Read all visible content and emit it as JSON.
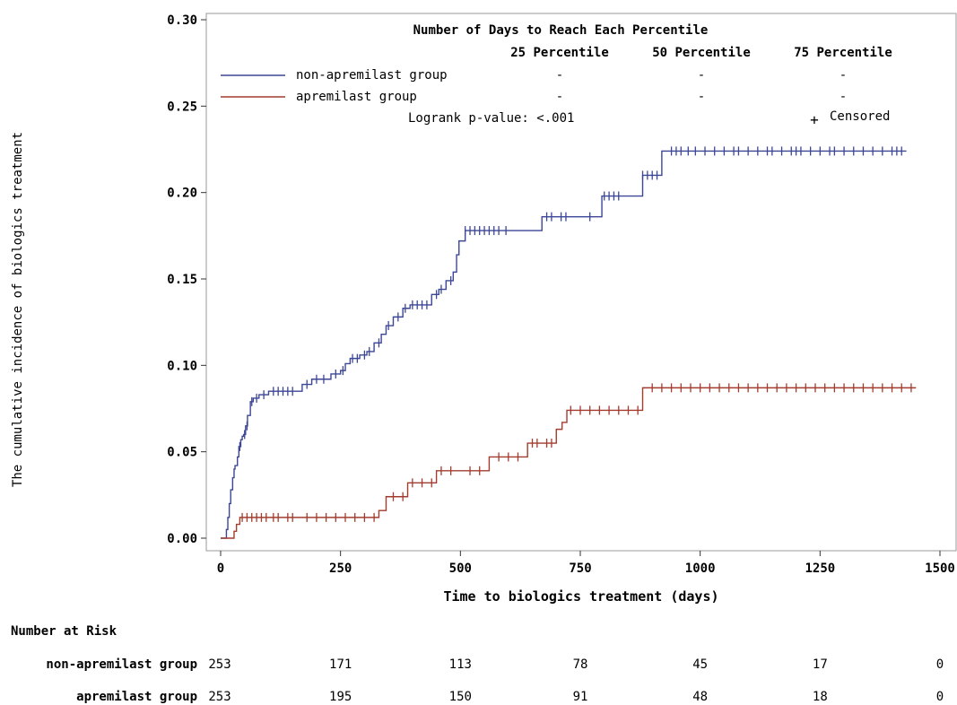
{
  "chart_data": {
    "type": "line",
    "subtype": "kaplan-meier cumulative incidence",
    "xlabel": "Time to biologics treatment (days)",
    "ylabel": "The cumulative incidence of biologics treatment",
    "xlim": [
      0,
      1500
    ],
    "ylim": [
      0,
      0.3
    ],
    "xticks": [
      "0",
      "250",
      "500",
      "750",
      "1000",
      "1250",
      "1500"
    ],
    "yticks": [
      "0.00",
      "0.05",
      "0.10",
      "0.15",
      "0.20",
      "0.25",
      "0.30"
    ],
    "grid": false,
    "legend_placement": "top-left",
    "inset_table": {
      "title": "Number of Days to Reach Each Percentile",
      "columns": [
        "25 Percentile",
        "50 Percentile",
        "75 Percentile"
      ],
      "rows": [
        {
          "group": "non-apremilast group",
          "values": [
            "-",
            "-",
            "-"
          ]
        },
        {
          "group": "apremilast group",
          "values": [
            "-",
            "-",
            "-"
          ]
        }
      ],
      "pvalue": "Logrank p-value: <.001",
      "censored_label": "Censored",
      "censored_symbol": "+"
    },
    "series": [
      {
        "name": "non-apremilast group",
        "color": "#3c4696",
        "x": [
          0,
          12,
          15,
          18,
          21,
          25,
          28,
          30,
          35,
          38,
          42,
          45,
          48,
          52,
          56,
          62,
          68,
          80,
          100,
          170,
          190,
          230,
          250,
          260,
          270,
          290,
          305,
          320,
          335,
          345,
          360,
          380,
          395,
          440,
          455,
          470,
          485,
          492,
          497,
          510,
          600,
          670,
          740,
          795,
          830,
          880,
          920,
          1430
        ],
        "y": [
          0,
          0.005,
          0.012,
          0.02,
          0.028,
          0.035,
          0.04,
          0.042,
          0.047,
          0.053,
          0.057,
          0.059,
          0.06,
          0.065,
          0.071,
          0.079,
          0.081,
          0.083,
          0.085,
          0.089,
          0.092,
          0.095,
          0.097,
          0.101,
          0.104,
          0.106,
          0.108,
          0.113,
          0.118,
          0.123,
          0.128,
          0.133,
          0.135,
          0.141,
          0.144,
          0.149,
          0.154,
          0.164,
          0.172,
          0.178,
          0.178,
          0.186,
          0.186,
          0.198,
          0.198,
          0.21,
          0.224,
          0.224
        ],
        "censored_x": [
          40,
          50,
          55,
          65,
          75,
          90,
          110,
          120,
          130,
          140,
          150,
          180,
          200,
          215,
          240,
          255,
          275,
          285,
          300,
          310,
          330,
          350,
          370,
          385,
          400,
          410,
          420,
          430,
          450,
          460,
          480,
          510,
          520,
          530,
          540,
          550,
          560,
          570,
          580,
          595,
          680,
          690,
          710,
          720,
          770,
          800,
          810,
          820,
          830,
          880,
          890,
          900,
          910,
          940,
          950,
          960,
          975,
          990,
          1010,
          1030,
          1050,
          1070,
          1080,
          1100,
          1120,
          1140,
          1150,
          1170,
          1190,
          1200,
          1210,
          1230,
          1250,
          1270,
          1280,
          1300,
          1320,
          1340,
          1360,
          1380,
          1400,
          1410,
          1420
        ]
      },
      {
        "name": "apremilast group",
        "color": "#a33c2e",
        "x": [
          0,
          28,
          33,
          40,
          330,
          345,
          390,
          450,
          510,
          560,
          640,
          700,
          712,
          722,
          880,
          1450
        ],
        "y": [
          0,
          0.004,
          0.008,
          0.012,
          0.016,
          0.024,
          0.032,
          0.039,
          0.039,
          0.047,
          0.055,
          0.063,
          0.067,
          0.074,
          0.087,
          0.087
        ],
        "censored_x": [
          45,
          55,
          65,
          75,
          85,
          95,
          110,
          120,
          140,
          150,
          180,
          200,
          220,
          240,
          260,
          280,
          300,
          320,
          360,
          380,
          400,
          420,
          440,
          460,
          480,
          520,
          540,
          580,
          600,
          620,
          650,
          660,
          680,
          690,
          730,
          750,
          770,
          790,
          810,
          830,
          850,
          870,
          900,
          920,
          940,
          960,
          980,
          1000,
          1020,
          1040,
          1060,
          1080,
          1100,
          1120,
          1140,
          1160,
          1180,
          1200,
          1220,
          1240,
          1260,
          1280,
          1300,
          1320,
          1340,
          1360,
          1380,
          1400,
          1420,
          1440
        ]
      }
    ]
  },
  "risk_table": {
    "title": "Number at Risk",
    "timepoints": [
      0,
      250,
      500,
      750,
      1000,
      1250,
      1500
    ],
    "rows": [
      {
        "label": "non-apremilast group",
        "counts": [
          "253",
          "171",
          "113",
          "78",
          "45",
          "17",
          "0"
        ]
      },
      {
        "label": "apremilast group",
        "counts": [
          "253",
          "195",
          "150",
          "91",
          "48",
          "18",
          "0"
        ]
      }
    ]
  }
}
